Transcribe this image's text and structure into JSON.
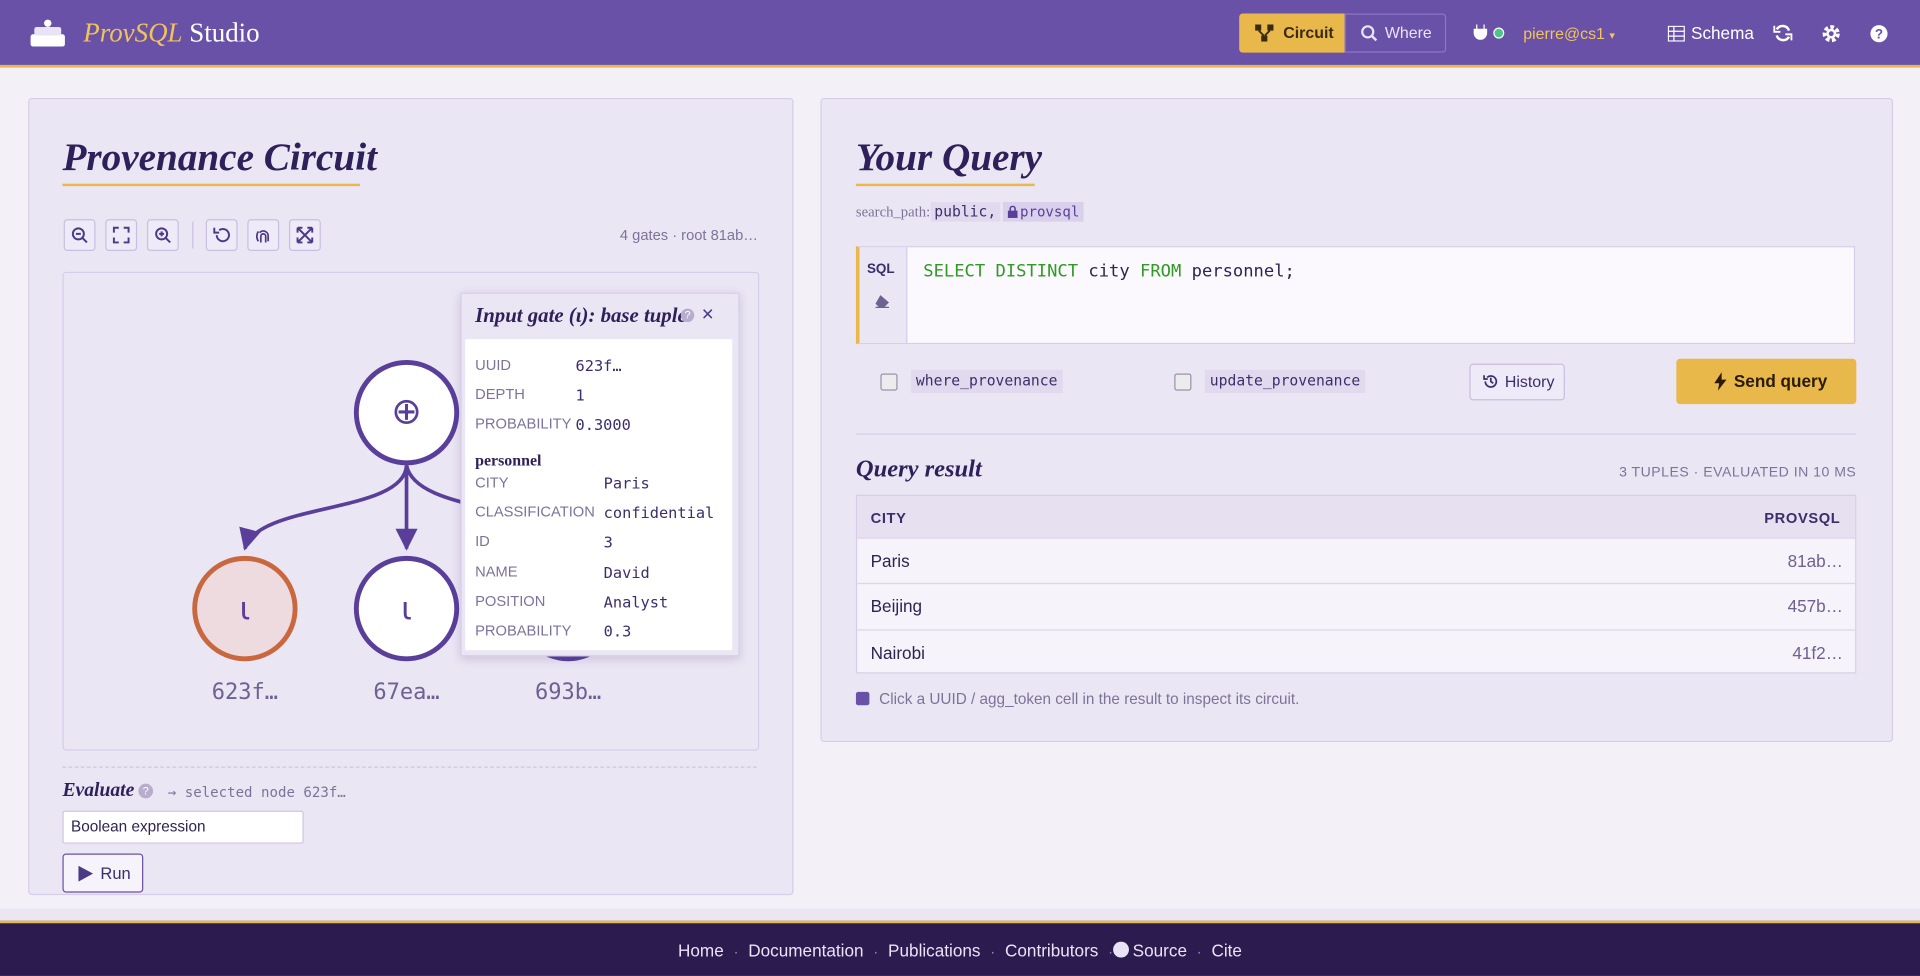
{
  "header": {
    "brand_italic": "ProvSQL",
    "brand": "Studio",
    "modes": [
      "Circuit",
      "Where"
    ],
    "user": "pierre@cs1",
    "user_caret": "▾",
    "schema": "Schema"
  },
  "circuit_panel": {
    "title": "Provenance Circuit",
    "summary": "4 gates · root 81ab…",
    "nodes": [
      {
        "symbol": "⊕"
      },
      {
        "symbol": "ι",
        "label": "623f…",
        "selected": true
      },
      {
        "symbol": "ι",
        "label": "67ea…"
      },
      {
        "label": "693b…"
      }
    ],
    "popup": {
      "title": "Input gate (ι): base tuple",
      "help": "?",
      "close": "×",
      "fields": [
        [
          "UUID",
          "623f…"
        ],
        [
          "DEPTH",
          "1"
        ],
        [
          "PROBABILITY",
          "0.3000"
        ]
      ],
      "relation": "personnel",
      "tuple": [
        [
          "CITY",
          "Paris"
        ],
        [
          "CLASSIFICATION",
          "confidential"
        ],
        [
          "ID",
          "3"
        ],
        [
          "NAME",
          "David"
        ],
        [
          "POSITION",
          "Analyst"
        ],
        [
          "PROBABILITY",
          "0.3"
        ]
      ]
    },
    "evaluate": {
      "label": "Evaluate",
      "help": "?",
      "selected": "→ selected node 623f…",
      "select": "Boolean expression",
      "run": "Run"
    }
  },
  "query_panel": {
    "title": "Your Query",
    "search_path_label": "search_path:",
    "search_path": [
      "public,",
      "provsql"
    ],
    "sql_tag": "SQL",
    "sql": [
      {
        "text": "SELECT DISTINCT",
        "keyword": true
      },
      {
        "text": " city ",
        "keyword": false
      },
      {
        "text": "FROM",
        "keyword": true
      },
      {
        "text": " personnel;",
        "keyword": false
      }
    ],
    "options": [
      "where_provenance",
      "update_provenance"
    ],
    "history": "History",
    "send": "Send query",
    "result_title": "Query result",
    "result_meta": "3 TUPLES · EVALUATED IN 10 MS",
    "table": {
      "columns": [
        "CITY",
        "PROVSQL"
      ],
      "rows": [
        [
          "Paris",
          "81ab…"
        ],
        [
          "Beijing",
          "457b…"
        ],
        [
          "Nairobi",
          "41f2…"
        ]
      ]
    },
    "hint": "Click a UUID / agg_token cell in the result to inspect its circuit."
  },
  "footer": {
    "links": [
      "Home",
      "Documentation",
      "Publications",
      "Contributors",
      "Source",
      "Cite"
    ]
  }
}
